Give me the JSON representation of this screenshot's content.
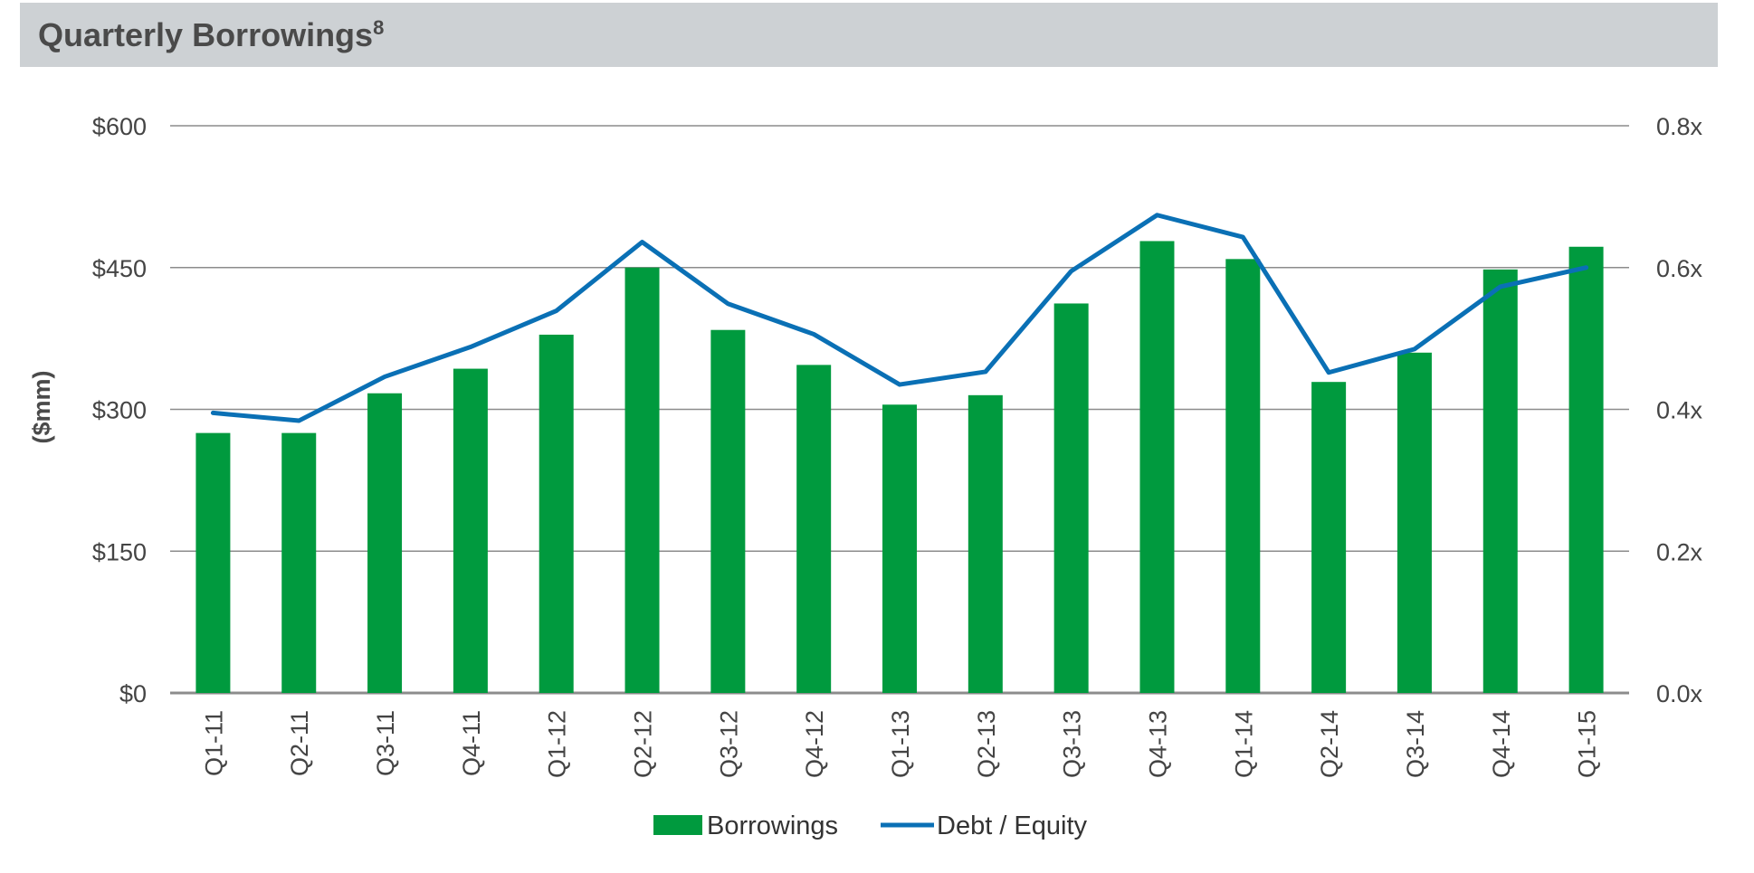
{
  "header": {
    "title": "Quarterly Borrowings",
    "footnote_marker": "8"
  },
  "chart_data": {
    "type": "bar",
    "title": "Quarterly Borrowings",
    "categories": [
      "Q1-11",
      "Q2-11",
      "Q3-11",
      "Q4-11",
      "Q1-12",
      "Q2-12",
      "Q3-12",
      "Q4-12",
      "Q1-13",
      "Q2-13",
      "Q3-13",
      "Q4-13",
      "Q1-14",
      "Q2-14",
      "Q3-14",
      "Q4-14",
      "Q1-15"
    ],
    "series": [
      {
        "name": "Borrowings",
        "type": "bar",
        "axis": "left",
        "color": "#009a3e",
        "values": [
          275,
          275,
          317,
          343,
          379,
          450,
          384,
          347,
          305,
          315,
          412,
          478,
          459,
          329,
          360,
          448,
          472
        ]
      },
      {
        "name": "Debt / Equity",
        "type": "line",
        "axis": "right",
        "color": "#0a70b5",
        "values": [
          0.395,
          0.384,
          0.446,
          0.488,
          0.539,
          0.636,
          0.549,
          0.506,
          0.435,
          0.453,
          0.595,
          0.674,
          0.643,
          0.452,
          0.485,
          0.573,
          0.6
        ]
      }
    ],
    "xlabel": "",
    "ylabel": "($mm)",
    "ylim": [
      0,
      600
    ],
    "y_ticks": [
      "$0",
      "$150",
      "$300",
      "$450",
      "$600"
    ],
    "y_tick_values": [
      0,
      150,
      300,
      450,
      600
    ],
    "y2lim": [
      0,
      0.8
    ],
    "y2_ticks": [
      "0.0x",
      "0.2x",
      "0.4x",
      "0.6x",
      "0.8x"
    ],
    "grid": true,
    "legend_position": "bottom-center",
    "gridline_color": "#8c8c8c"
  }
}
